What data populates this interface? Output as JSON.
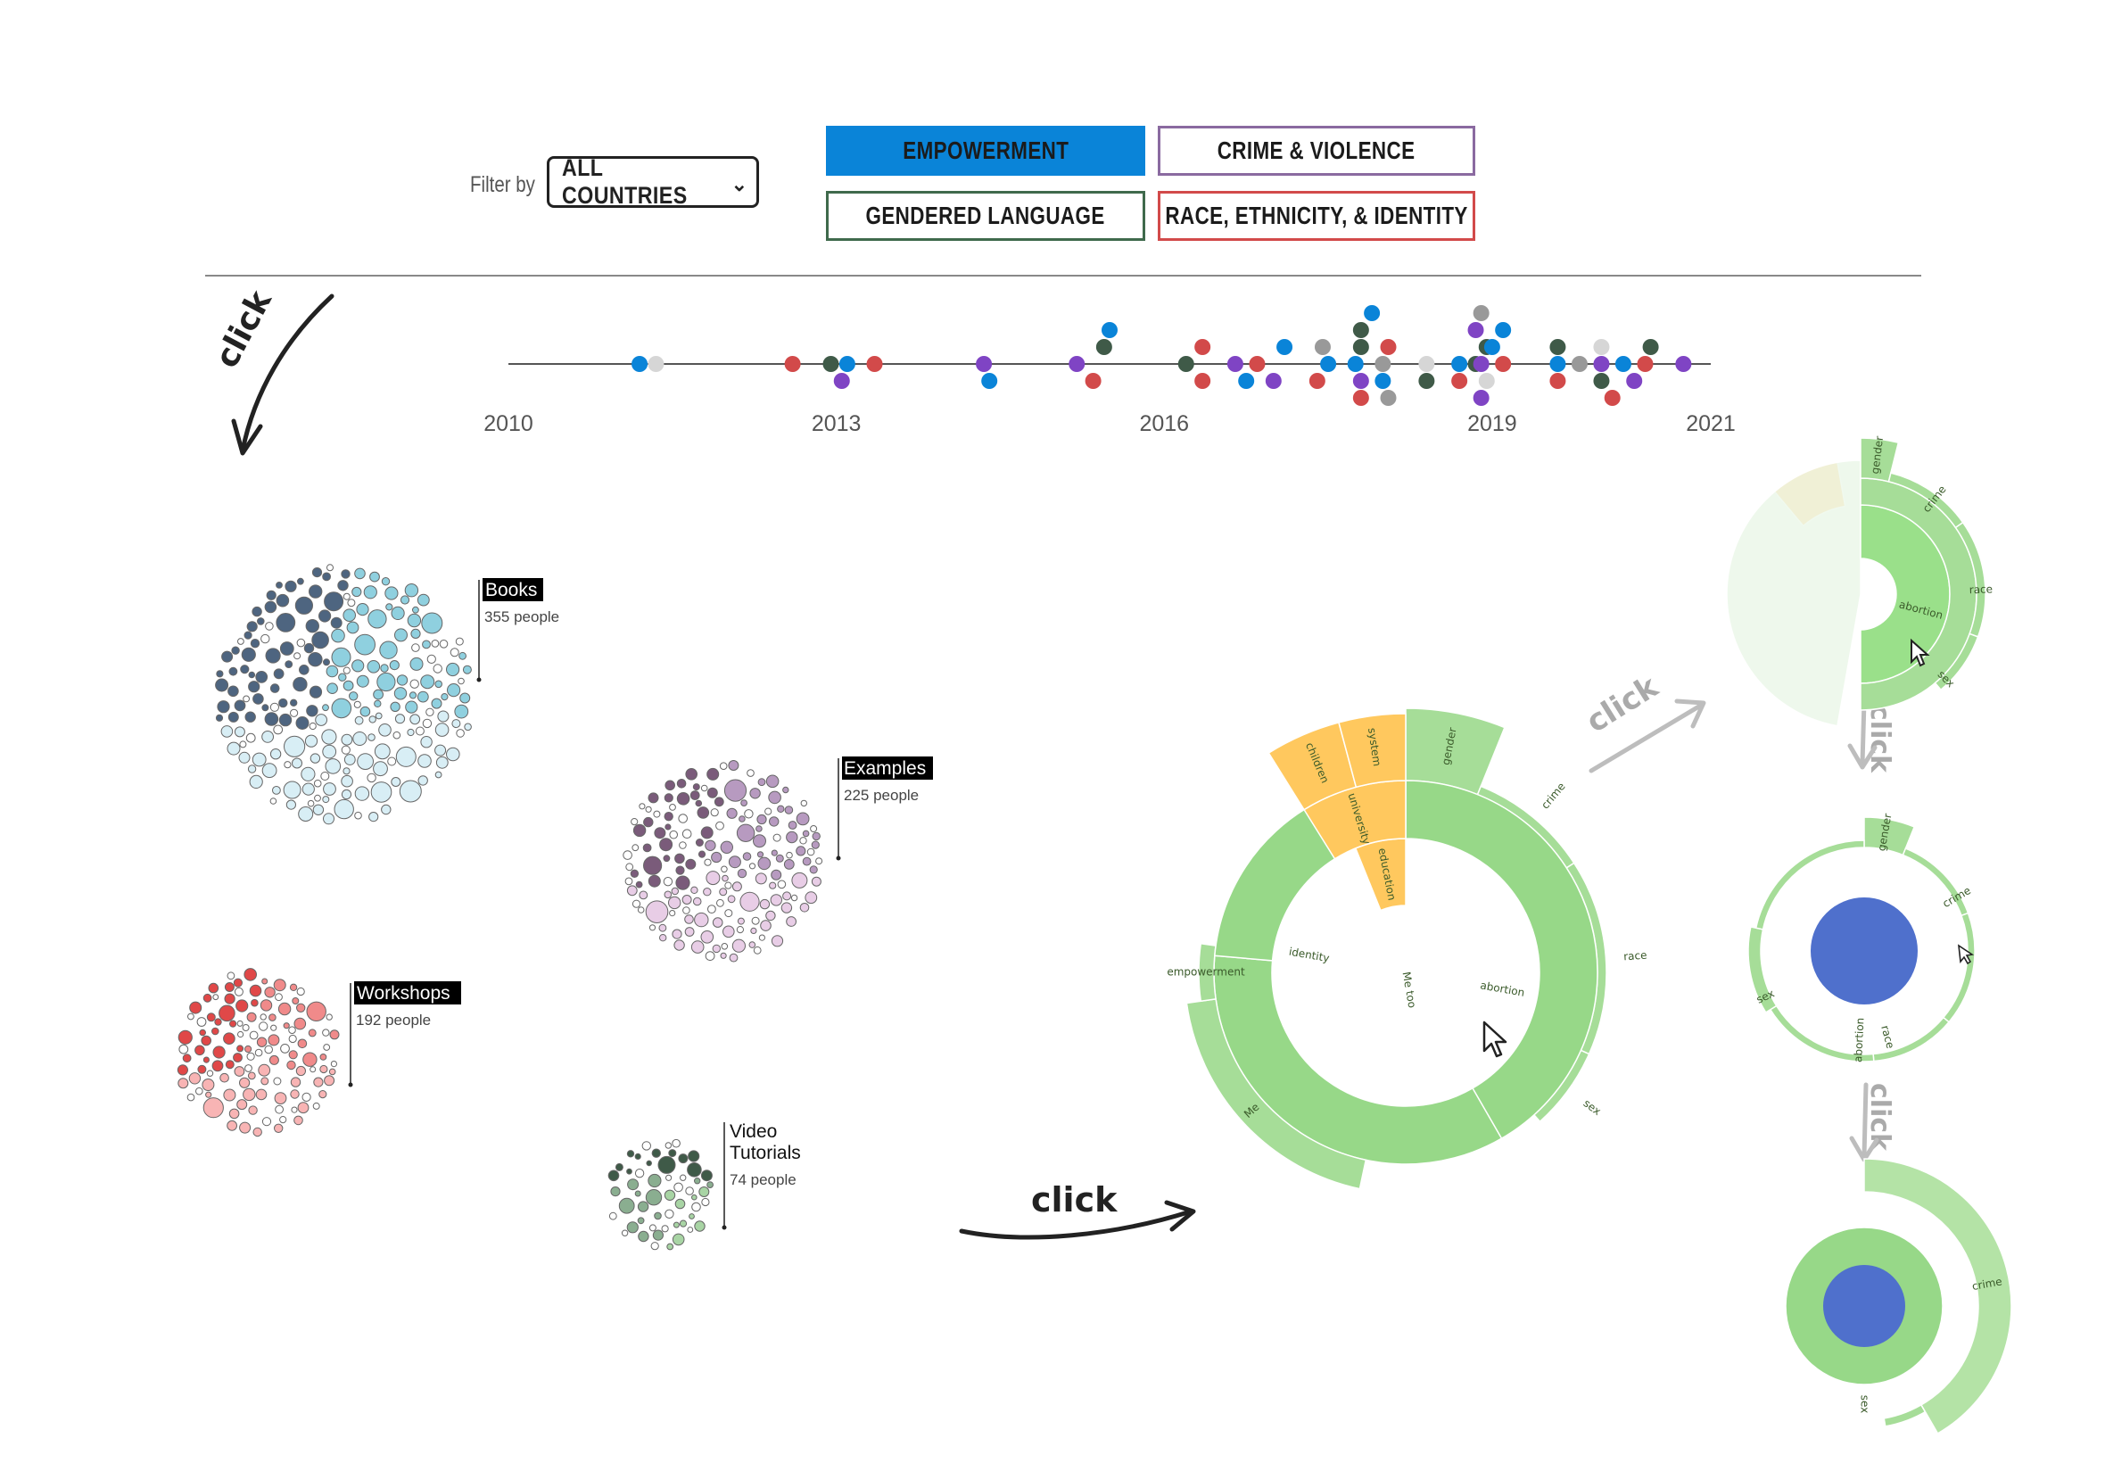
{
  "filter": {
    "label": "Filter by",
    "selected": "ALL COUNTRIES"
  },
  "tags": [
    {
      "label": "EMPOWERMENT",
      "color": "#0a84d8",
      "active": true
    },
    {
      "label": "CRIME & VIOLENCE",
      "color": "#8a6aa0",
      "active": false
    },
    {
      "label": "GENDERED LANGUAGE",
      "color": "#3f6a4c",
      "active": false
    },
    {
      "label": "RACE, ETHNICITY, & IDENTITY",
      "color": "#d24a4a",
      "active": false
    }
  ],
  "timeline": {
    "ticks": [
      "2010",
      "2013",
      "2016",
      "2019",
      "2021"
    ],
    "tick_years": [
      2010,
      2013,
      2016,
      2019,
      2021
    ],
    "start": 2010,
    "end": 2021,
    "dot_colors": {
      "blue": "#0a84d8",
      "red": "#d24a4a",
      "purple": "#7f44c4",
      "green": "#3f5a48",
      "gray": "#999999",
      "lightgray": "#d6d6d6"
    },
    "dots": [
      {
        "year": 2011.2,
        "level": 0,
        "c": "blue"
      },
      {
        "year": 2011.35,
        "level": 0,
        "c": "lightgray"
      },
      {
        "year": 2012.6,
        "level": 0,
        "c": "red"
      },
      {
        "year": 2012.95,
        "level": 0,
        "c": "green"
      },
      {
        "year": 2013.1,
        "level": 0,
        "c": "blue"
      },
      {
        "year": 2013.05,
        "level": -1,
        "c": "purple"
      },
      {
        "year": 2013.35,
        "level": 0,
        "c": "red"
      },
      {
        "year": 2014.35,
        "level": 0,
        "c": "purple"
      },
      {
        "year": 2014.4,
        "level": -1,
        "c": "blue"
      },
      {
        "year": 2015.2,
        "level": 0,
        "c": "purple"
      },
      {
        "year": 2015.35,
        "level": -1,
        "c": "red"
      },
      {
        "year": 2015.45,
        "level": 1,
        "c": "green"
      },
      {
        "year": 2015.5,
        "level": 2,
        "c": "blue"
      },
      {
        "year": 2016.2,
        "level": 0,
        "c": "green"
      },
      {
        "year": 2016.35,
        "level": 1,
        "c": "red"
      },
      {
        "year": 2016.35,
        "level": -1,
        "c": "red"
      },
      {
        "year": 2016.65,
        "level": 0,
        "c": "purple"
      },
      {
        "year": 2016.75,
        "level": -1,
        "c": "blue"
      },
      {
        "year": 2016.85,
        "level": 0,
        "c": "red"
      },
      {
        "year": 2017.0,
        "level": -1,
        "c": "purple"
      },
      {
        "year": 2017.1,
        "level": 1,
        "c": "blue"
      },
      {
        "year": 2017.5,
        "level": 0,
        "c": "blue"
      },
      {
        "year": 2017.45,
        "level": 1,
        "c": "gray"
      },
      {
        "year": 2017.4,
        "level": -1,
        "c": "red"
      },
      {
        "year": 2017.75,
        "level": 0,
        "c": "blue"
      },
      {
        "year": 2017.8,
        "level": 1,
        "c": "green"
      },
      {
        "year": 2017.8,
        "level": 2,
        "c": "green"
      },
      {
        "year": 2017.9,
        "level": 3,
        "c": "blue"
      },
      {
        "year": 2017.8,
        "level": -1,
        "c": "purple"
      },
      {
        "year": 2017.8,
        "level": -2,
        "c": "red"
      },
      {
        "year": 2018.0,
        "level": 0,
        "c": "gray"
      },
      {
        "year": 2018.0,
        "level": -1,
        "c": "blue"
      },
      {
        "year": 2018.05,
        "level": -2,
        "c": "gray"
      },
      {
        "year": 2018.05,
        "level": 1,
        "c": "red"
      },
      {
        "year": 2018.4,
        "level": 0,
        "c": "lightgray"
      },
      {
        "year": 2018.4,
        "level": -1,
        "c": "green"
      },
      {
        "year": 2018.7,
        "level": 0,
        "c": "blue"
      },
      {
        "year": 2018.7,
        "level": -1,
        "c": "red"
      },
      {
        "year": 2018.85,
        "level": 0,
        "c": "green"
      },
      {
        "year": 2018.85,
        "level": 2,
        "c": "purple"
      },
      {
        "year": 2018.9,
        "level": 3,
        "c": "gray"
      },
      {
        "year": 2018.9,
        "level": -2,
        "c": "purple"
      },
      {
        "year": 2018.9,
        "level": 0,
        "c": "purple"
      },
      {
        "year": 2018.95,
        "level": -1,
        "c": "lightgray"
      },
      {
        "year": 2018.95,
        "level": 1,
        "c": "green"
      },
      {
        "year": 2019.0,
        "level": 1,
        "c": "blue"
      },
      {
        "year": 2019.1,
        "level": 2,
        "c": "blue"
      },
      {
        "year": 2019.1,
        "level": 0,
        "c": "red"
      },
      {
        "year": 2019.6,
        "level": 0,
        "c": "blue"
      },
      {
        "year": 2019.6,
        "level": 1,
        "c": "green"
      },
      {
        "year": 2019.6,
        "level": -1,
        "c": "red"
      },
      {
        "year": 2019.8,
        "level": 0,
        "c": "gray"
      },
      {
        "year": 2020.0,
        "level": 0,
        "c": "purple"
      },
      {
        "year": 2020.0,
        "level": 1,
        "c": "lightgray"
      },
      {
        "year": 2020.0,
        "level": -1,
        "c": "green"
      },
      {
        "year": 2020.1,
        "level": -2,
        "c": "red"
      },
      {
        "year": 2020.2,
        "level": 0,
        "c": "blue"
      },
      {
        "year": 2020.3,
        "level": -1,
        "c": "purple"
      },
      {
        "year": 2020.4,
        "level": 0,
        "c": "red"
      },
      {
        "year": 2020.45,
        "level": 1,
        "c": "green"
      },
      {
        "year": 2020.75,
        "level": 0,
        "c": "purple"
      }
    ]
  },
  "bubble_clusters": [
    {
      "title": "Books",
      "sub": "355 people",
      "dark": "#4e6580",
      "mid": "#8fd0df",
      "light": "#d8eef5",
      "highlight": true
    },
    {
      "title": "Examples",
      "sub": "225 people",
      "dark": "#7a5b7a",
      "mid": "#b79ac0",
      "light": "#e8cde6",
      "highlight": true
    },
    {
      "title": "Workshops",
      "sub": "192 people",
      "dark": "#e04848",
      "mid": "#f08a8a",
      "light": "#f8b4b4",
      "highlight": true
    },
    {
      "title": "Video Tutorials",
      "title_lines": [
        "Video",
        "Tutorials"
      ],
      "sub": "74 people",
      "dark": "#3f5a48",
      "mid": "#8aae90",
      "light": "#a8d4a4",
      "highlight": false
    }
  ],
  "click_labels": [
    "click",
    "click",
    "click",
    "click",
    "click"
  ],
  "sunburst": {
    "colors": {
      "inner": "#82cc72",
      "ring": "#97d888",
      "outer": "#a6dd98",
      "highlight": "#ffc85e",
      "core": "#4f70cc"
    },
    "center_label": "Me too",
    "middle_labels": [
      "abortion",
      "identity",
      "education",
      "university"
    ],
    "outer_labels": [
      "gender",
      "crime",
      "race",
      "sex",
      "Me",
      "empowerment",
      "children",
      "system"
    ],
    "small_labels": [
      "gender",
      "crime",
      "abortion",
      "race",
      "sex"
    ]
  }
}
